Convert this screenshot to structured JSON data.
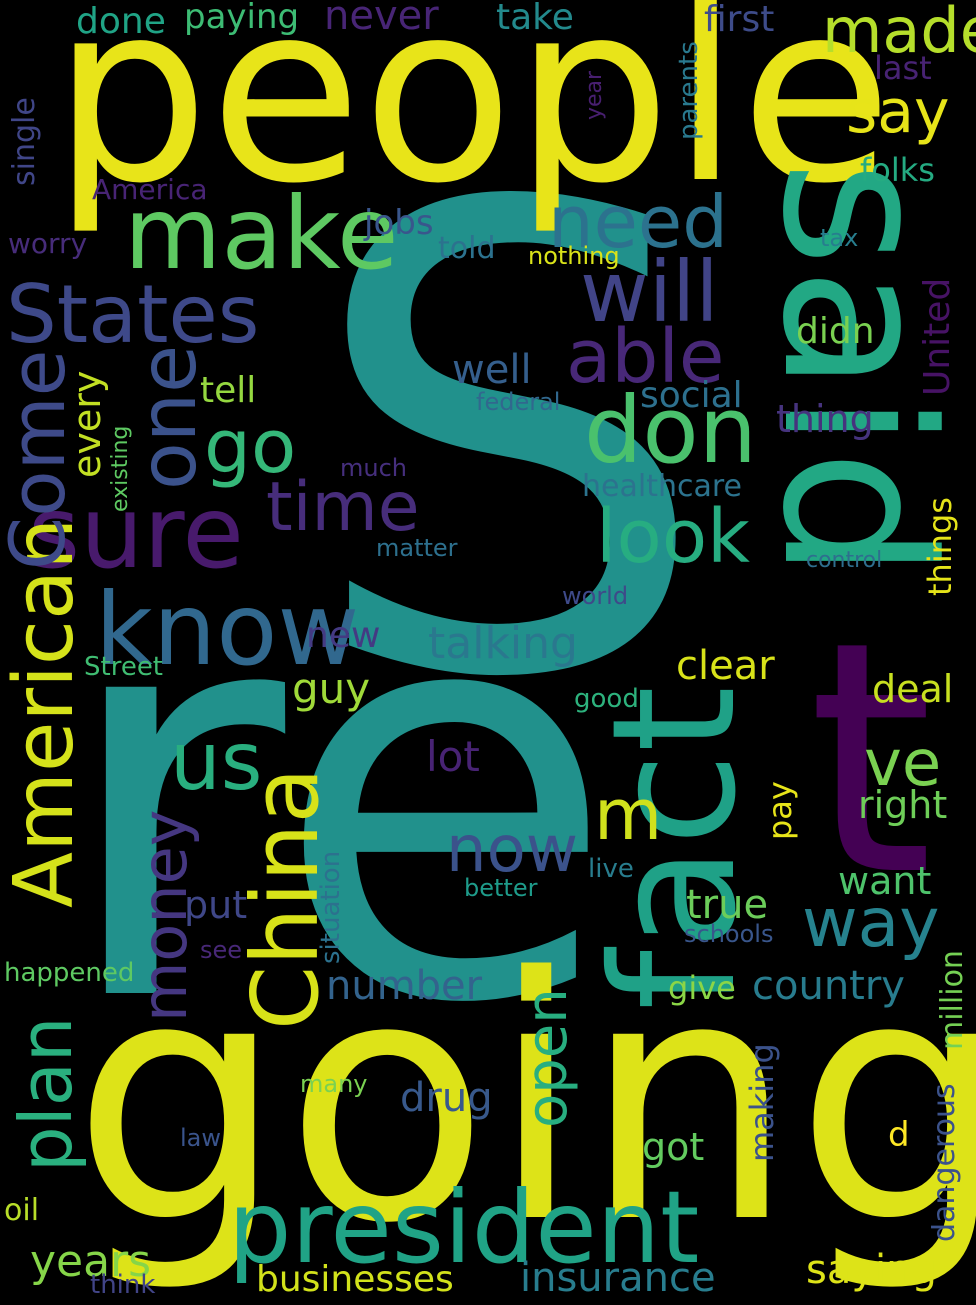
{
  "words": [
    {
      "text": "S",
      "color": "#21918c"
    },
    {
      "text": "re",
      "color": "#21918c"
    },
    {
      "text": "going",
      "color": "#dde318"
    },
    {
      "text": "people",
      "color": "#e8e419"
    },
    {
      "text": "said",
      "color": "#22a884"
    },
    {
      "text": "fact",
      "color": "#1fa187"
    },
    {
      "text": "t",
      "color": "#440154"
    },
    {
      "text": "president",
      "color": "#20a386"
    },
    {
      "text": "make",
      "color": "#5ec962"
    },
    {
      "text": "sure",
      "color": "#481a6c"
    },
    {
      "text": "don",
      "color": "#4ac16d"
    },
    {
      "text": "know",
      "color": "#31688e"
    },
    {
      "text": "China",
      "color": "#d8e219"
    },
    {
      "text": "American",
      "color": "#d5e21a"
    },
    {
      "text": "one",
      "color": "#3b528b"
    },
    {
      "text": "States",
      "color": "#3e4989"
    },
    {
      "text": "Come",
      "color": "#3e4a89"
    },
    {
      "text": "will",
      "color": "#414487"
    },
    {
      "text": "able",
      "color": "#482878"
    },
    {
      "text": "need",
      "color": "#2c728e"
    },
    {
      "text": "go",
      "color": "#35b779"
    },
    {
      "text": "time",
      "color": "#472d7b"
    },
    {
      "text": "look",
      "color": "#27ad81"
    },
    {
      "text": "us",
      "color": "#29af7f"
    },
    {
      "text": "money",
      "color": "#453781"
    },
    {
      "text": "plan",
      "color": "#2ab07f"
    },
    {
      "text": "way",
      "color": "#26828e"
    },
    {
      "text": "now",
      "color": "#3b528b"
    },
    {
      "text": "m",
      "color": "#d0e11c"
    },
    {
      "text": "ve",
      "color": "#7ad151"
    },
    {
      "text": "made",
      "color": "#b5de2b"
    },
    {
      "text": "say",
      "color": "#e7e419"
    },
    {
      "text": "open",
      "color": "#28ae80"
    },
    {
      "text": "talking",
      "color": "#2a788e"
    },
    {
      "text": "insurance",
      "color": "#287d8e"
    },
    {
      "text": "businesses",
      "color": "#d2e21b"
    },
    {
      "text": "saying",
      "color": "#dde318"
    },
    {
      "text": "years",
      "color": "#86d549"
    },
    {
      "text": "country",
      "color": "#287c8e"
    },
    {
      "text": "number",
      "color": "#33638d"
    },
    {
      "text": "every",
      "color": "#c2df23"
    },
    {
      "text": "well",
      "color": "#355f8d"
    },
    {
      "text": "thing",
      "color": "#46337e"
    },
    {
      "text": "guy",
      "color": "#a0da39"
    },
    {
      "text": "true",
      "color": "#6ccd5a"
    },
    {
      "text": "clear",
      "color": "#d8e219"
    },
    {
      "text": "deal",
      "color": "#c8e020"
    },
    {
      "text": "social",
      "color": "#2d708e"
    },
    {
      "text": "want",
      "color": "#4ec36b"
    },
    {
      "text": "got",
      "color": "#63cb5f"
    },
    {
      "text": "drug",
      "color": "#38598c"
    },
    {
      "text": "lot",
      "color": "#482374"
    },
    {
      "text": "right",
      "color": "#6ece58"
    },
    {
      "text": "put",
      "color": "#3f4788"
    },
    {
      "text": "didn",
      "color": "#7ad151"
    },
    {
      "text": "new",
      "color": "#443a83"
    },
    {
      "text": "jobs",
      "color": "#39568c"
    },
    {
      "text": "first",
      "color": "#3e4c8a"
    },
    {
      "text": "take",
      "color": "#238a8d"
    },
    {
      "text": "done",
      "color": "#20a486"
    },
    {
      "text": "paying",
      "color": "#3dbc74"
    },
    {
      "text": "never",
      "color": "#482576"
    },
    {
      "text": "tell",
      "color": "#95d840"
    },
    {
      "text": "told",
      "color": "#2c728e"
    },
    {
      "text": "folks",
      "color": "#25ab82"
    },
    {
      "text": "last",
      "color": "#482374"
    },
    {
      "text": "give",
      "color": "#8bd646"
    },
    {
      "text": "healthcare",
      "color": "#2c738e"
    },
    {
      "text": "things",
      "color": "#e5e419"
    },
    {
      "text": "United",
      "color": "#471365"
    },
    {
      "text": "million",
      "color": "#75d054"
    },
    {
      "text": "dangerous",
      "color": "#3b528b"
    },
    {
      "text": "making",
      "color": "#3b528b"
    },
    {
      "text": "pay",
      "color": "#e7e419"
    },
    {
      "text": "d",
      "color": "#fde725"
    },
    {
      "text": "America",
      "color": "#482475"
    },
    {
      "text": "worry",
      "color": "#472c7a"
    },
    {
      "text": "single",
      "color": "#404688"
    },
    {
      "text": "parents",
      "color": "#29798e"
    },
    {
      "text": "year",
      "color": "#481f70"
    },
    {
      "text": "existing",
      "color": "#5ec962"
    },
    {
      "text": "situation",
      "color": "#2c718e"
    },
    {
      "text": "tax",
      "color": "#277e8e"
    },
    {
      "text": "nothing",
      "color": "#dae319"
    },
    {
      "text": "federal",
      "color": "#31688e"
    },
    {
      "text": "much",
      "color": "#462f7e"
    },
    {
      "text": "matter",
      "color": "#2d708e"
    },
    {
      "text": "control",
      "color": "#2e6e8e"
    },
    {
      "text": "world",
      "color": "#3e4a89"
    },
    {
      "text": "good",
      "color": "#2db27d"
    },
    {
      "text": "Street",
      "color": "#40bd72"
    },
    {
      "text": "live",
      "color": "#287d8e"
    },
    {
      "text": "better",
      "color": "#1e9b8a"
    },
    {
      "text": "schools",
      "color": "#39568c"
    },
    {
      "text": "see",
      "color": "#482878"
    },
    {
      "text": "happened",
      "color": "#5ec962"
    },
    {
      "text": "many",
      "color": "#7ad151"
    },
    {
      "text": "law",
      "color": "#3a548c"
    },
    {
      "text": "oil",
      "color": "#b8de29"
    },
    {
      "text": "think",
      "color": "#414487"
    }
  ]
}
